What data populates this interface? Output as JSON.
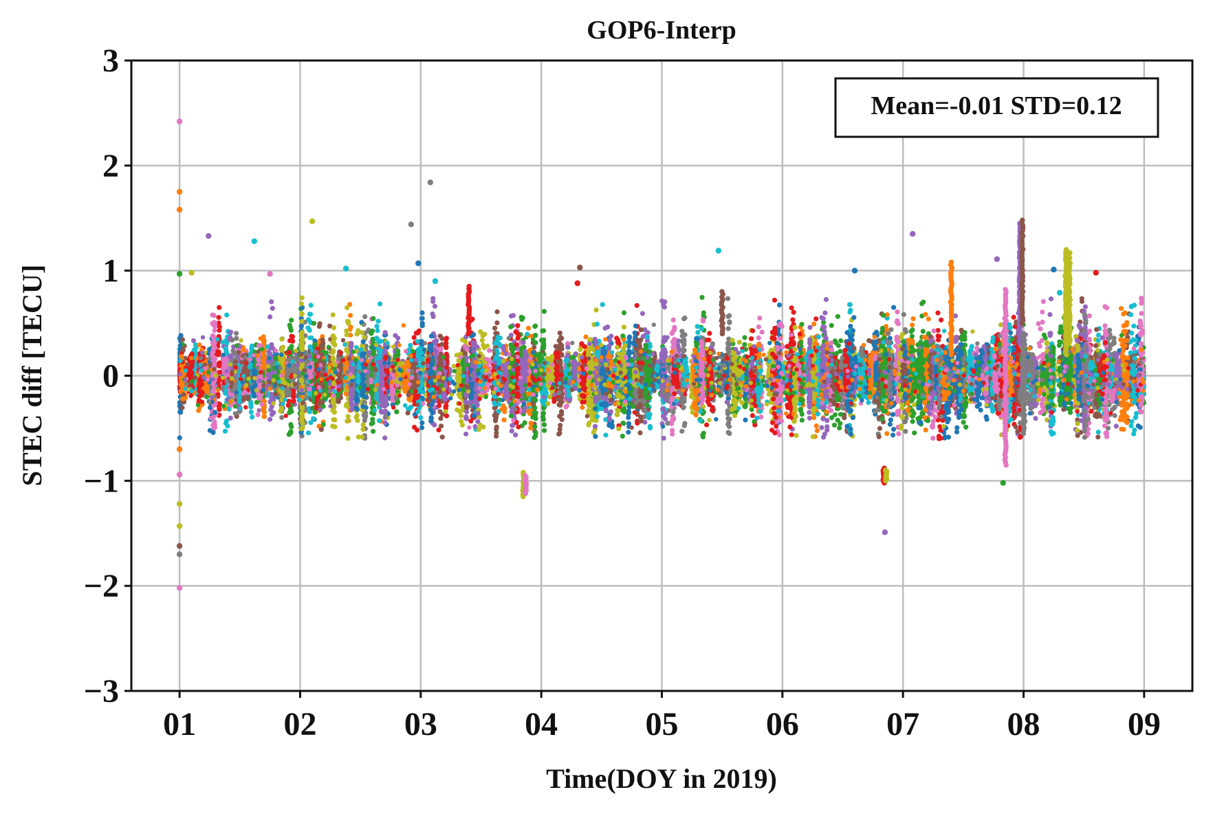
{
  "chart_data": {
    "type": "scatter",
    "title": "GOP6-Interp",
    "xlabel": "Time(DOY in 2019)",
    "ylabel": "STEC diff [TECU]",
    "xlim": [
      0.6,
      9.4
    ],
    "ylim": [
      -3,
      3
    ],
    "x_ticks": [
      {
        "value": 1,
        "label": "01"
      },
      {
        "value": 2,
        "label": "02"
      },
      {
        "value": 3,
        "label": "03"
      },
      {
        "value": 4,
        "label": "04"
      },
      {
        "value": 5,
        "label": "05"
      },
      {
        "value": 6,
        "label": "06"
      },
      {
        "value": 7,
        "label": "07"
      },
      {
        "value": 8,
        "label": "08"
      },
      {
        "value": 9,
        "label": "09"
      }
    ],
    "y_ticks": [
      {
        "value": 3,
        "label": "3"
      },
      {
        "value": 2,
        "label": "2"
      },
      {
        "value": 1,
        "label": "1"
      },
      {
        "value": 0,
        "label": "0"
      },
      {
        "value": -1,
        "label": "−1"
      },
      {
        "value": -2,
        "label": "−2"
      },
      {
        "value": -3,
        "label": "−3"
      }
    ],
    "grid": true,
    "annotation": {
      "text": "Mean=-0.01 STD=0.12",
      "placement": "top-right"
    },
    "palette": [
      "#1f77b4",
      "#ff7f0e",
      "#2ca02c",
      "#e41a1c",
      "#9467bd",
      "#8c564b",
      "#e377c2",
      "#7f7f7f",
      "#bcbd22",
      "#17becf"
    ],
    "data_range": [
      1,
      9
    ],
    "mean": -0.01,
    "std": 0.12,
    "outliers": [
      {
        "x": 1.0,
        "y": 2.42
      },
      {
        "x": 1.0,
        "y": 1.75
      },
      {
        "x": 1.0,
        "y": 1.58
      },
      {
        "x": 1.0,
        "y": 0.97
      },
      {
        "x": 1.1,
        "y": 0.98
      },
      {
        "x": 1.0,
        "y": -0.7
      },
      {
        "x": 1.0,
        "y": -0.94
      },
      {
        "x": 1.0,
        "y": -1.22
      },
      {
        "x": 1.0,
        "y": -1.43
      },
      {
        "x": 1.0,
        "y": -1.62
      },
      {
        "x": 1.0,
        "y": -1.7
      },
      {
        "x": 1.0,
        "y": -2.02
      },
      {
        "x": 1.24,
        "y": 1.33
      },
      {
        "x": 1.62,
        "y": 1.28
      },
      {
        "x": 1.75,
        "y": 0.97
      },
      {
        "x": 2.1,
        "y": 1.47
      },
      {
        "x": 2.38,
        "y": 1.02
      },
      {
        "x": 2.92,
        "y": 1.44
      },
      {
        "x": 2.98,
        "y": 1.07
      },
      {
        "x": 3.08,
        "y": 1.84
      },
      {
        "x": 3.12,
        "y": 0.9
      },
      {
        "x": 4.3,
        "y": 0.88
      },
      {
        "x": 4.32,
        "y": 1.03
      },
      {
        "x": 5.47,
        "y": 1.19
      },
      {
        "x": 6.6,
        "y": 1.0
      },
      {
        "x": 6.85,
        "y": -1.49
      },
      {
        "x": 7.08,
        "y": 1.35
      },
      {
        "x": 7.78,
        "y": 1.11
      },
      {
        "x": 7.83,
        "y": -1.02
      },
      {
        "x": 8.25,
        "y": 1.01
      },
      {
        "x": 8.3,
        "y": 0.79
      },
      {
        "x": 8.6,
        "y": 0.98
      }
    ],
    "spikes": [
      {
        "x": 3.85,
        "y": [
          -0.92,
          -1.15
        ]
      },
      {
        "x": 3.87,
        "y": [
          -0.95,
          -1.12
        ]
      },
      {
        "x": 6.84,
        "y": [
          -0.88,
          -1.02
        ]
      },
      {
        "x": 6.86,
        "y": [
          -0.9,
          -1.0
        ]
      },
      {
        "x": 7.4,
        "y": [
          0.2,
          1.08
        ]
      },
      {
        "x": 7.97,
        "y": [
          0.3,
          1.45
        ]
      },
      {
        "x": 7.99,
        "y": [
          0.5,
          1.48
        ]
      },
      {
        "x": 8.35,
        "y": [
          0.2,
          1.2
        ]
      },
      {
        "x": 8.38,
        "y": [
          0.3,
          1.17
        ]
      },
      {
        "x": 7.85,
        "y": [
          -0.85,
          0.82
        ]
      },
      {
        "x": 8.0,
        "y": [
          -0.55,
          0.4
        ]
      },
      {
        "x": 3.4,
        "y": [
          0.4,
          0.85
        ]
      },
      {
        "x": 5.5,
        "y": [
          0.4,
          0.8
        ]
      }
    ]
  }
}
